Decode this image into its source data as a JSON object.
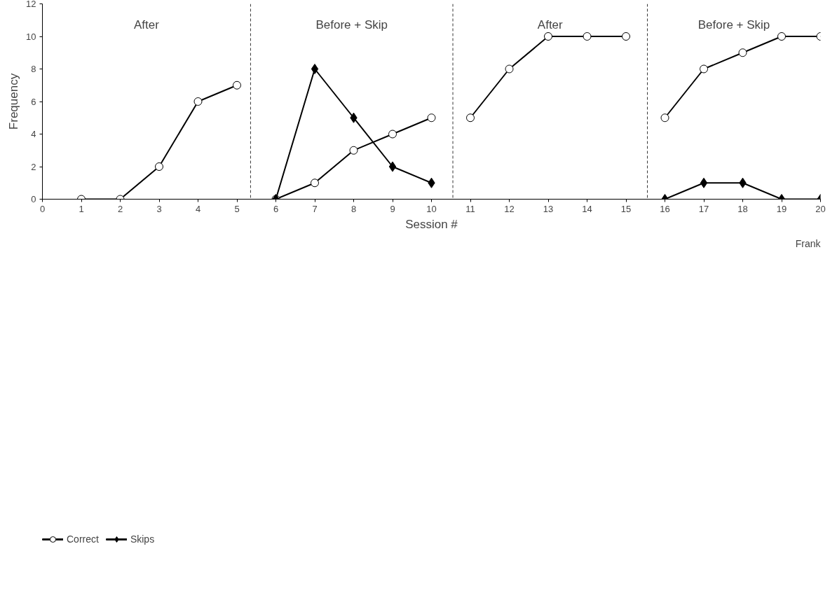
{
  "chart_data": {
    "type": "line",
    "xlabel": "Session #",
    "ylabel": "Frequency",
    "x": [
      1,
      2,
      3,
      4,
      5,
      6,
      7,
      8,
      9,
      10,
      11,
      12,
      13,
      14,
      15,
      16,
      17,
      18,
      19,
      20
    ],
    "xlim": [
      0,
      20
    ],
    "xticks": [
      0,
      1,
      2,
      3,
      4,
      5,
      6,
      7,
      8,
      9,
      10,
      11,
      12,
      13,
      14,
      15,
      16,
      17,
      18,
      19,
      20
    ],
    "ylim": [
      0,
      12
    ],
    "yticks": [
      0,
      2,
      4,
      6,
      8,
      10,
      12
    ],
    "series": [
      {
        "name": "Correct",
        "color": "#000000",
        "marker": "circle",
        "values": [
          0,
          0,
          2,
          6,
          7,
          0,
          1,
          3,
          4,
          5,
          5,
          8,
          10,
          10,
          10,
          5,
          8,
          9,
          10,
          10
        ]
      },
      {
        "name": "Skips",
        "color": "#000000",
        "marker": "diamond",
        "values": [
          null,
          null,
          null,
          null,
          null,
          0,
          8,
          5,
          2,
          1,
          null,
          null,
          null,
          null,
          null,
          0,
          1,
          1,
          0,
          0
        ]
      }
    ],
    "ref_lines": [
      {
        "axis": "x",
        "value": 5.35,
        "line_style": "dashed"
      },
      {
        "axis": "x",
        "value": 10.55,
        "line_style": "dashed"
      },
      {
        "axis": "x",
        "value": 15.55,
        "line_style": "dashed"
      }
    ],
    "annotations": [
      "After",
      "Before + Skip",
      "After",
      "Before + Skip",
      "Frank"
    ],
    "legend": "bottom left",
    "grid": false
  }
}
